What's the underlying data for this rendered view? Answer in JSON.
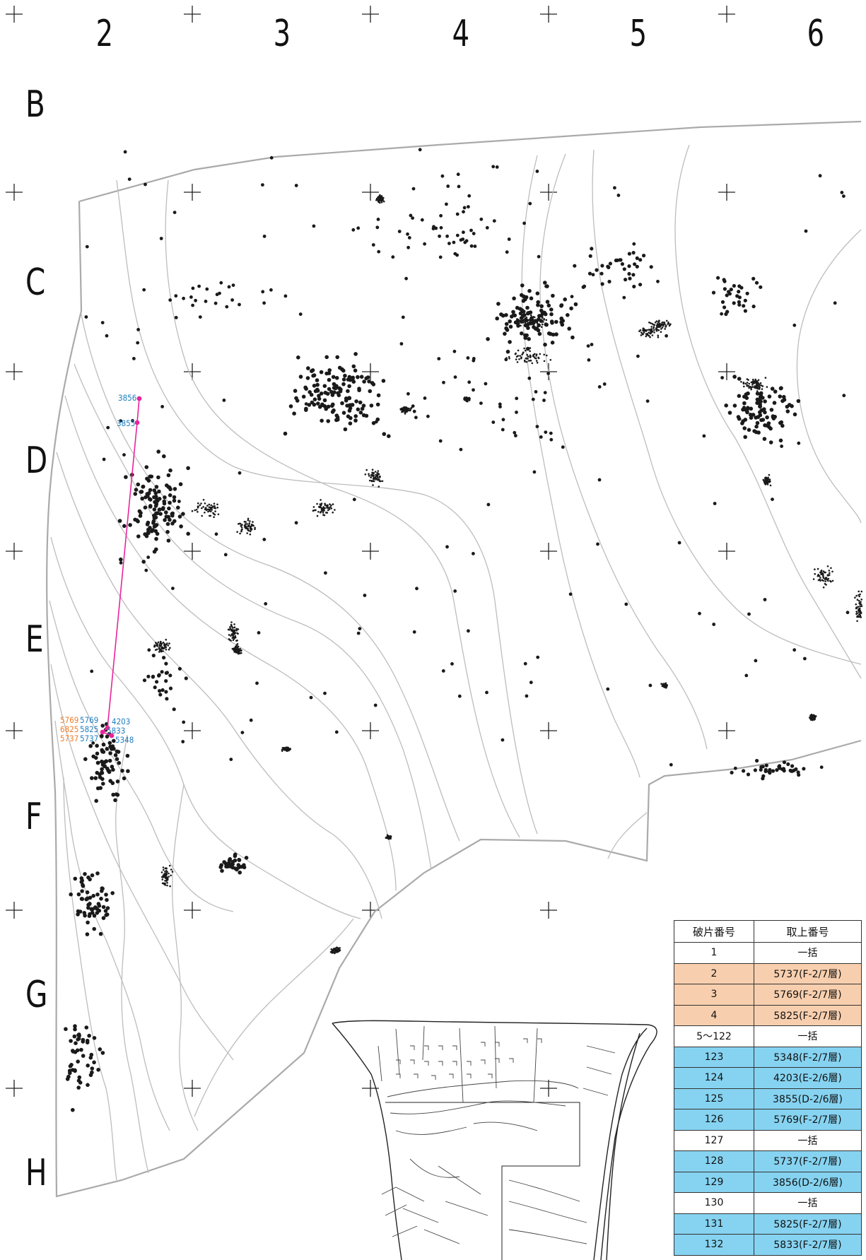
{
  "grid": {
    "columns": [
      "2",
      "3",
      "4",
      "5",
      "6"
    ],
    "rows": [
      "B",
      "C",
      "D",
      "E",
      "F",
      "G",
      "H"
    ]
  },
  "point_labels": {
    "p3856": "3856",
    "p3855": "3855",
    "p5769o": "5769",
    "p5769b": "5769",
    "p4203": "4203",
    "p6825": "6825",
    "p5825": "5825",
    "p5833": "5833",
    "p5737o": "5737",
    "p5737b": "5737",
    "p5348": "5348"
  },
  "colors": {
    "highlight_orange": "#f8cfae",
    "highlight_blue": "#86d3f1",
    "connect_line": "#e8259a",
    "label_blue": "#1e7fc0",
    "label_orange": "#f07d28"
  },
  "legend": {
    "headers": [
      "破片番号",
      "取上番号"
    ],
    "rows": [
      {
        "fragment": "1",
        "number": "一括",
        "highlight": "none"
      },
      {
        "fragment": "2",
        "number": "5737(F-2/7層)",
        "highlight": "orange"
      },
      {
        "fragment": "3",
        "number": "5769(F-2/7層)",
        "highlight": "orange"
      },
      {
        "fragment": "4",
        "number": "5825(F-2/7層)",
        "highlight": "orange"
      },
      {
        "fragment": "5～122",
        "number": "一括",
        "highlight": "none"
      },
      {
        "fragment": "123",
        "number": "5348(F-2/7層)",
        "highlight": "blue"
      },
      {
        "fragment": "124",
        "number": "4203(E-2/6層)",
        "highlight": "blue"
      },
      {
        "fragment": "125",
        "number": "3855(D-2/6層)",
        "highlight": "blue"
      },
      {
        "fragment": "126",
        "number": "5769(F-2/7層)",
        "highlight": "blue"
      },
      {
        "fragment": "127",
        "number": "一括",
        "highlight": "none"
      },
      {
        "fragment": "128",
        "number": "5737(F-2/7層)",
        "highlight": "blue"
      },
      {
        "fragment": "129",
        "number": "3856(D-2/6層)",
        "highlight": "blue"
      },
      {
        "fragment": "130",
        "number": "一括",
        "highlight": "none"
      },
      {
        "fragment": "131",
        "number": "5825(F-2/7層)",
        "highlight": "blue"
      },
      {
        "fragment": "132",
        "number": "5833(F-2/7層)",
        "highlight": "blue"
      }
    ]
  }
}
